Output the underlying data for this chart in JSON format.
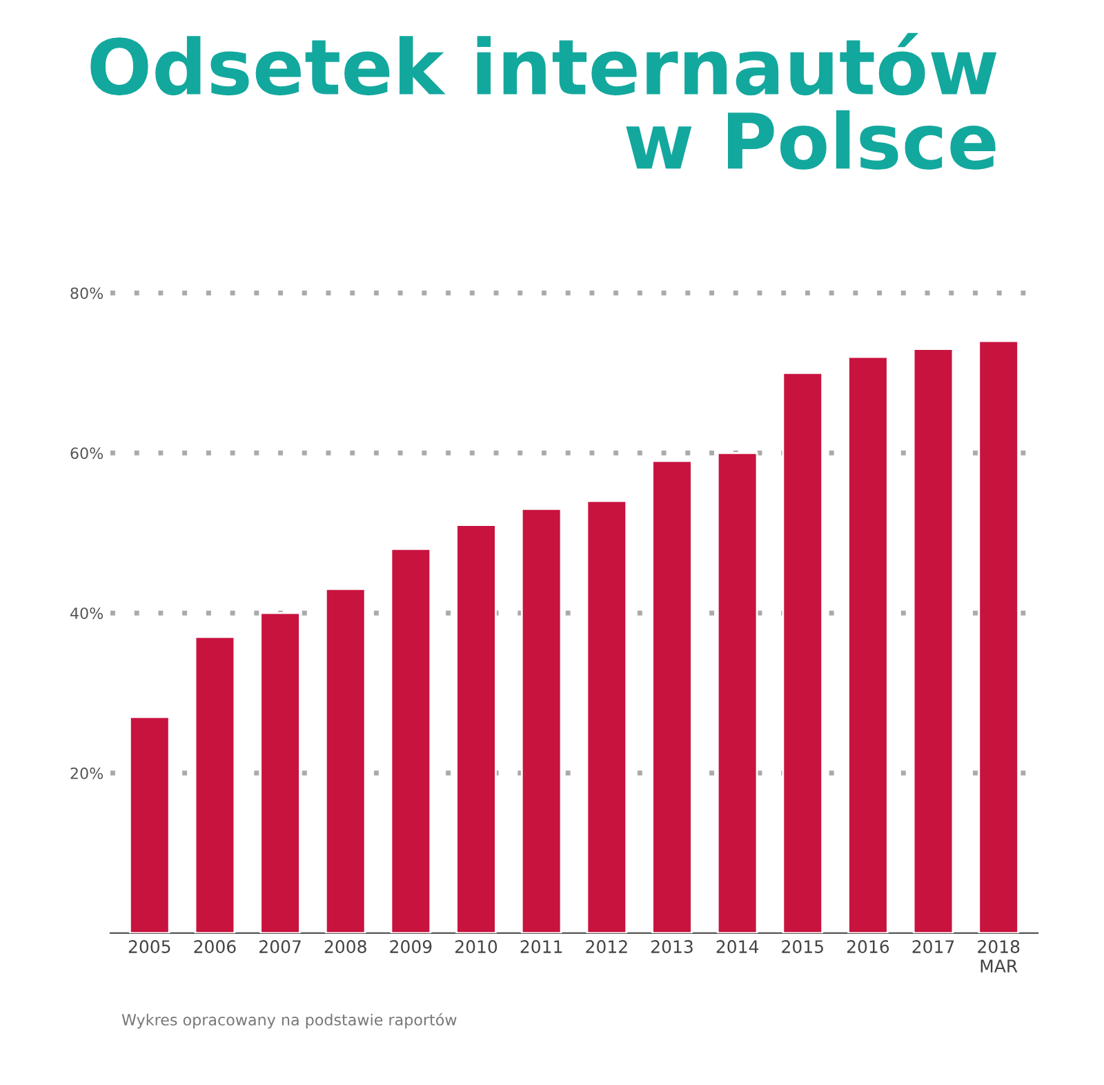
{
  "chart_data": {
    "type": "bar",
    "title": "Odsetek internautów\nw Polsce",
    "categories": [
      "2005",
      "2006",
      "2007",
      "2008",
      "2009",
      "2010",
      "2011",
      "2012",
      "2013",
      "2014",
      "2015",
      "2016",
      "2017",
      "2018\nMAR"
    ],
    "values": [
      27,
      37,
      40,
      43,
      48,
      51,
      53,
      54,
      59,
      60,
      70,
      72,
      73,
      74
    ],
    "color": "#c8133f",
    "ylim": [
      0,
      80
    ],
    "yticks": [
      {
        "value": 20,
        "label": "20%"
      },
      {
        "value": 40,
        "label": "40%"
      },
      {
        "value": 60,
        "label": "60%"
      },
      {
        "value": 80,
        "label": "80%"
      }
    ],
    "grid": "y",
    "annotations": [
      "Wykres opracowany na podstawie raportów"
    ]
  }
}
